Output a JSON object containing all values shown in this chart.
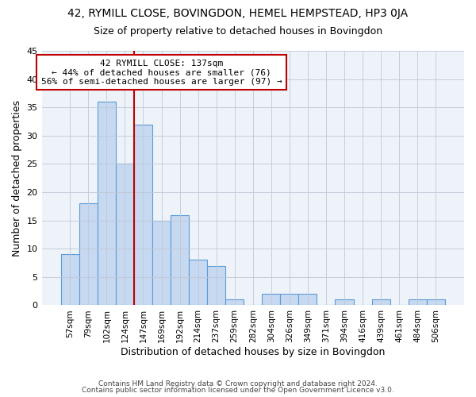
{
  "title1": "42, RYMILL CLOSE, BOVINGDON, HEMEL HEMPSTEAD, HP3 0JA",
  "title2": "Size of property relative to detached houses in Bovingdon",
  "xlabel": "Distribution of detached houses by size in Bovingdon",
  "ylabel": "Number of detached properties",
  "bar_labels": [
    "57sqm",
    "79sqm",
    "102sqm",
    "124sqm",
    "147sqm",
    "169sqm",
    "192sqm",
    "214sqm",
    "237sqm",
    "259sqm",
    "282sqm",
    "304sqm",
    "326sqm",
    "349sqm",
    "371sqm",
    "394sqm",
    "416sqm",
    "439sqm",
    "461sqm",
    "484sqm",
    "506sqm"
  ],
  "bar_values": [
    9,
    18,
    36,
    25,
    32,
    15,
    16,
    8,
    7,
    1,
    0,
    2,
    2,
    2,
    0,
    1,
    0,
    1,
    0,
    1,
    1
  ],
  "bar_color": "#c6d9f0",
  "bar_edgecolor": "#5b9bd5",
  "vline_color": "#c00000",
  "annotation_title": "42 RYMILL CLOSE: 137sqm",
  "annotation_line2": "← 44% of detached houses are smaller (76)",
  "annotation_line3": "56% of semi-detached houses are larger (97) →",
  "annotation_box_color": "white",
  "annotation_box_edgecolor": "#c00000",
  "ylim": [
    0,
    45
  ],
  "yticks": [
    0,
    5,
    10,
    15,
    20,
    25,
    30,
    35,
    40,
    45
  ],
  "footer1": "Contains HM Land Registry data © Crown copyright and database right 2024.",
  "footer2": "Contains public sector information licensed under the Open Government Licence v3.0.",
  "bg_color": "#ffffff",
  "plot_bg_color": "#eef3f9",
  "title1_fontsize": 10,
  "title2_fontsize": 9,
  "vline_bin_index": 4
}
